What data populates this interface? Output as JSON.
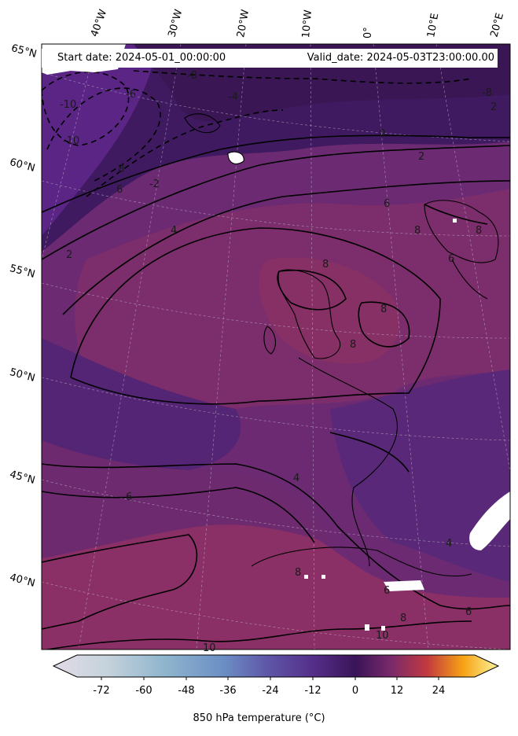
{
  "header": {
    "start_date": "Start date: 2024-05-01_00:00:00",
    "valid_date": "Valid_date: 2024-05-03T23:00:00.00"
  },
  "lon_labels": [
    "40°W",
    "30°W",
    "20°W",
    "10°W",
    "0°",
    "10°E",
    "20°E"
  ],
  "lat_labels": [
    "65°N",
    "60°N",
    "55°N",
    "50°N",
    "45°N",
    "40°N"
  ],
  "contour_labels": [
    "-10",
    "-10",
    "-8",
    "-8",
    "-6",
    "-4",
    "-2",
    "0",
    "2",
    "2",
    "2",
    "4",
    "4",
    "4",
    "6",
    "6",
    "6",
    "6",
    "6",
    "6",
    "8",
    "8",
    "8",
    "8",
    "8",
    "8",
    "8",
    "8",
    "10",
    "10"
  ],
  "colorbar": {
    "ticks": [
      "-72",
      "-60",
      "-48",
      "-36",
      "-24",
      "-12",
      "0",
      "12",
      "24"
    ],
    "label": "850 hPa temperature (°C)",
    "range": [
      -84,
      36
    ],
    "extend": "both"
  },
  "colors": {
    "cold_purple": "#4a1f70",
    "mid_purple": "#5e2772",
    "warm_magenta": "#7c2d6b",
    "warmer_magenta": "#8a3066",
    "contour": "#000000"
  }
}
